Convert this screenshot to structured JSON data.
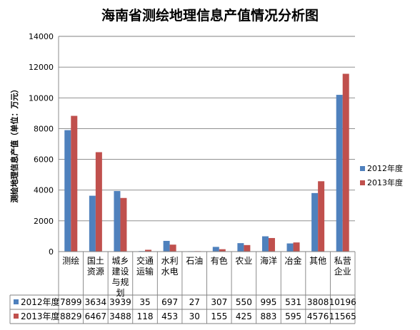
{
  "chart_data": {
    "type": "bar",
    "title": "海南省测绘地理信息产值情况分析图",
    "ylabel": "测绘地理信息产值（单位：万元）",
    "xlabel": "",
    "ylim": [
      0,
      14000
    ],
    "yticks": [
      0,
      2000,
      4000,
      6000,
      8000,
      10000,
      12000,
      14000
    ],
    "grid": true,
    "legend_position": "right",
    "categories": [
      [
        "测绘"
      ],
      [
        "国土",
        "资源"
      ],
      [
        "城乡",
        "建设",
        "与规",
        "划"
      ],
      [
        "交通",
        "运输"
      ],
      [
        "水利",
        "水电"
      ],
      [
        "石油"
      ],
      [
        "有色"
      ],
      [
        "农业"
      ],
      [
        "海洋"
      ],
      [
        "冶金"
      ],
      [
        "其他"
      ],
      [
        "私营",
        "企业"
      ]
    ],
    "series": [
      {
        "name": "2012年度",
        "color": "#4F81BD",
        "values": [
          7899,
          3634,
          3939,
          35,
          697,
          27,
          307,
          550,
          995,
          531,
          3808,
          10196
        ]
      },
      {
        "name": "2013年度",
        "color": "#C0504D",
        "values": [
          8829,
          6467,
          3488,
          118,
          453,
          30,
          155,
          425,
          883,
          595,
          4576,
          11565
        ]
      }
    ],
    "data_table": true
  }
}
